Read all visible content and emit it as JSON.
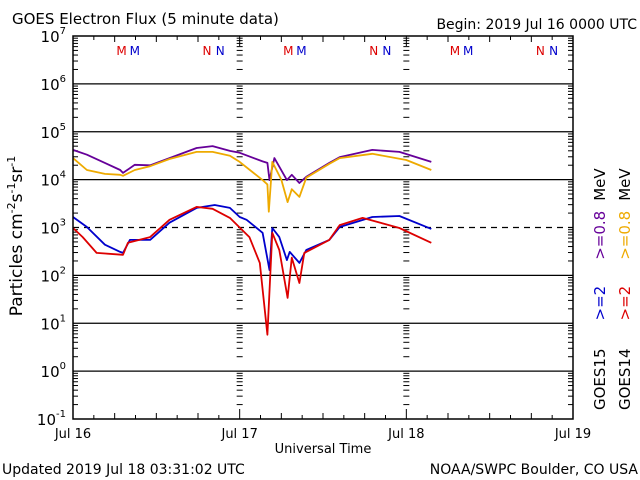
{
  "header": {
    "title": "GOES Electron Flux (5 minute data)",
    "begin": "Begin: 2019 Jul 16 0000 UTC"
  },
  "footer": {
    "updated": "Updated 2019 Jul 18 03:31:02 UTC",
    "credit": "NOAA/SWPC Boulder, CO USA"
  },
  "chart_data": {
    "type": "line",
    "title": "GOES Electron Flux (5 minute data)",
    "xlabel": "Universal Time",
    "ylabel": "Particles cm-2s-1sr-1",
    "ylabel_parts": {
      "base": "Particles cm",
      "e1": "-2",
      "s": "s",
      "e2": "-1",
      "sr": "sr",
      "e3": "-1"
    },
    "x_unit": "hours since 2019 Jul 16 0000 UTC",
    "xlim": [
      0,
      72
    ],
    "x_ticks": [
      {
        "hour": 0,
        "label": "Jul 16"
      },
      {
        "hour": 24,
        "label": "Jul 17"
      },
      {
        "hour": 48,
        "label": "Jul 18"
      },
      {
        "hour": 72,
        "label": "Jul 19"
      }
    ],
    "y_scale": "log10",
    "ylim_log10": [
      -1,
      7
    ],
    "y_ticks": [
      {
        "base": "10",
        "exp": "7"
      },
      {
        "base": "10",
        "exp": "6"
      },
      {
        "base": "10",
        "exp": "5"
      },
      {
        "base": "10",
        "exp": "4"
      },
      {
        "base": "10",
        "exp": "3"
      },
      {
        "base": "10",
        "exp": "2"
      },
      {
        "base": "10",
        "exp": "1"
      },
      {
        "base": "10",
        "exp": "0"
      },
      {
        "base": "10",
        "exp": "-1"
      }
    ],
    "threshold_log10": 3,
    "markers": [
      {
        "label": "M",
        "hour": 7.0,
        "color": "#dd0000"
      },
      {
        "label": "M",
        "hour": 8.9,
        "color": "#0000cc"
      },
      {
        "label": "N",
        "hour": 19.3,
        "color": "#dd0000"
      },
      {
        "label": "N",
        "hour": 21.2,
        "color": "#0000cc"
      },
      {
        "label": "M",
        "hour": 31.0,
        "color": "#dd0000"
      },
      {
        "label": "M",
        "hour": 32.9,
        "color": "#0000cc"
      },
      {
        "label": "N",
        "hour": 43.3,
        "color": "#dd0000"
      },
      {
        "label": "N",
        "hour": 45.2,
        "color": "#0000cc"
      },
      {
        "label": "M",
        "hour": 55.0,
        "color": "#dd0000"
      },
      {
        "label": "M",
        "hour": 56.9,
        "color": "#0000cc"
      },
      {
        "label": "N",
        "hour": 67.3,
        "color": "#dd0000"
      },
      {
        "label": "N",
        "hour": 69.2,
        "color": "#0000cc"
      }
    ],
    "legend": [
      {
        "sat": "GOES15",
        "energy": ">=2",
        "energy_hi": ">=0.8",
        "unit": "MeV",
        "color_lo": "#0000cc",
        "color_hi": "#660099"
      },
      {
        "sat": "GOES14",
        "energy": ">=2",
        "energy_hi": ">=0.8",
        "unit": "MeV",
        "color_lo": "#dd0000",
        "color_hi": "#eeaa00"
      }
    ],
    "legend_placement": "right-outside-vertical",
    "series": [
      {
        "name": "GOES15 >=0.8 MeV",
        "color": "#660099",
        "x": [
          0,
          2.0,
          4.6,
          6.8,
          7.2,
          8.9,
          11.1,
          13.9,
          17.8,
          20.1,
          22.6,
          24.0,
          27.3,
          28.0,
          28.3,
          29.0,
          30.8,
          31.5,
          32.6,
          33.6,
          36.9,
          38.4,
          43.1,
          47.0,
          51.6
        ],
        "log10_flux": [
          4.62,
          4.52,
          4.35,
          4.2,
          4.14,
          4.31,
          4.3,
          4.45,
          4.66,
          4.7,
          4.6,
          4.56,
          4.38,
          4.35,
          3.99,
          4.45,
          3.99,
          4.1,
          3.93,
          4.06,
          4.35,
          4.47,
          4.62,
          4.58,
          4.37
        ]
      },
      {
        "name": "GOES14 >=0.8 MeV",
        "color": "#eeaa00",
        "x": [
          0,
          2.0,
          4.6,
          6.8,
          7.2,
          8.9,
          11.1,
          13.9,
          17.8,
          20.1,
          22.6,
          24.0,
          27.3,
          28.0,
          28.2,
          28.7,
          30.0,
          30.9,
          31.5,
          32.6,
          33.6,
          36.9,
          38.4,
          43.1,
          48.0,
          51.6
        ],
        "log10_flux": [
          4.45,
          4.2,
          4.12,
          4.1,
          4.08,
          4.2,
          4.28,
          4.43,
          4.58,
          4.58,
          4.5,
          4.37,
          3.99,
          3.9,
          3.33,
          4.37,
          4.0,
          3.53,
          3.8,
          3.64,
          4.04,
          4.33,
          4.45,
          4.54,
          4.41,
          4.2
        ]
      },
      {
        "name": "GOES15 >=2 MeV",
        "color": "#0000cc",
        "x": [
          0,
          2.0,
          4.6,
          6.8,
          7.2,
          8.2,
          11.1,
          13.9,
          17.8,
          20.4,
          22.6,
          24.0,
          25.0,
          27.3,
          28.3,
          28.7,
          29.7,
          30.8,
          31.2,
          32.6,
          33.6,
          36.9,
          38.4,
          43.1,
          47.0,
          51.6
        ],
        "log10_flux": [
          3.22,
          3.01,
          2.64,
          2.49,
          2.47,
          2.74,
          2.74,
          3.1,
          3.41,
          3.47,
          3.41,
          3.22,
          3.16,
          2.89,
          2.11,
          2.99,
          2.8,
          2.32,
          2.49,
          2.26,
          2.53,
          2.74,
          3.01,
          3.22,
          3.24,
          2.97
        ]
      },
      {
        "name": "GOES14 >=2 MeV",
        "color": "#dd0000",
        "x": [
          0,
          1.4,
          3.4,
          7.2,
          7.9,
          11.1,
          13.9,
          17.8,
          20.1,
          22.6,
          25.4,
          26.9,
          28.0,
          28.7,
          29.7,
          30.9,
          31.5,
          32.6,
          33.3,
          36.9,
          38.4,
          41.7,
          47.0,
          51.6
        ],
        "log10_flux": [
          2.99,
          2.8,
          2.47,
          2.43,
          2.68,
          2.8,
          3.16,
          3.43,
          3.39,
          3.2,
          2.8,
          2.26,
          0.76,
          2.89,
          2.53,
          1.53,
          2.37,
          1.84,
          2.47,
          2.74,
          3.05,
          3.2,
          2.99,
          2.68
        ]
      }
    ]
  }
}
